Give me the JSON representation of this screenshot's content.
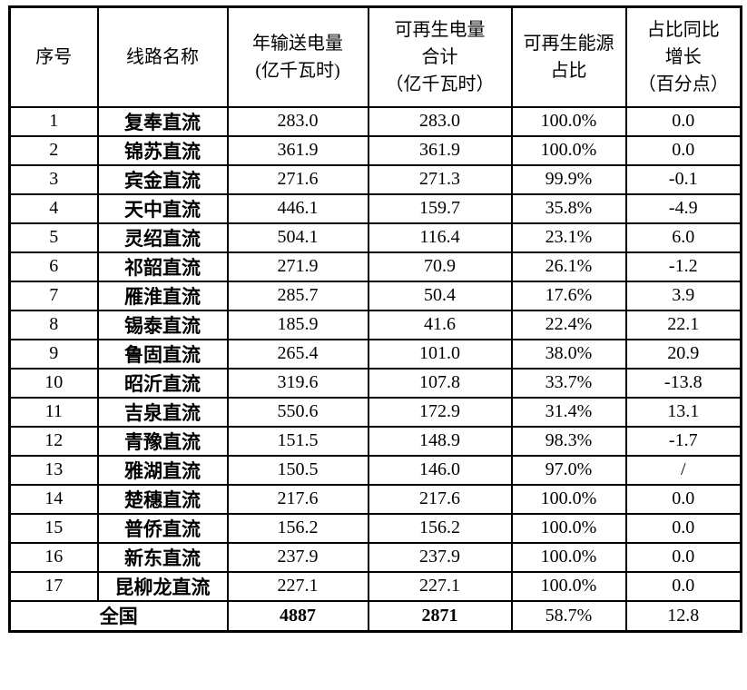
{
  "colors": {
    "border": "#000000",
    "background": "#ffffff",
    "text": "#000000"
  },
  "table": {
    "columns": [
      "序号",
      "线路名称",
      "年输送电量\n(亿千瓦时)",
      "可再生电量\n合计\n（亿千瓦时）",
      "可再生能源\n占比",
      "占比同比\n增长\n（百分点）"
    ],
    "rows": [
      {
        "seq": "1",
        "name": "复奉直流",
        "annual": "283.0",
        "renewable": "283.0",
        "share": "100.0%",
        "yoy": "0.0"
      },
      {
        "seq": "2",
        "name": "锦苏直流",
        "annual": "361.9",
        "renewable": "361.9",
        "share": "100.0%",
        "yoy": "0.0"
      },
      {
        "seq": "3",
        "name": "宾金直流",
        "annual": "271.6",
        "renewable": "271.3",
        "share": "99.9%",
        "yoy": "-0.1"
      },
      {
        "seq": "4",
        "name": "天中直流",
        "annual": "446.1",
        "renewable": "159.7",
        "share": "35.8%",
        "yoy": "-4.9"
      },
      {
        "seq": "5",
        "name": "灵绍直流",
        "annual": "504.1",
        "renewable": "116.4",
        "share": "23.1%",
        "yoy": "6.0"
      },
      {
        "seq": "6",
        "name": "祁韶直流",
        "annual": "271.9",
        "renewable": "70.9",
        "share": "26.1%",
        "yoy": "-1.2"
      },
      {
        "seq": "7",
        "name": "雁淮直流",
        "annual": "285.7",
        "renewable": "50.4",
        "share": "17.6%",
        "yoy": "3.9"
      },
      {
        "seq": "8",
        "name": "锡泰直流",
        "annual": "185.9",
        "renewable": "41.6",
        "share": "22.4%",
        "yoy": "22.1"
      },
      {
        "seq": "9",
        "name": "鲁固直流",
        "annual": "265.4",
        "renewable": "101.0",
        "share": "38.0%",
        "yoy": "20.9"
      },
      {
        "seq": "10",
        "name": "昭沂直流",
        "annual": "319.6",
        "renewable": "107.8",
        "share": "33.7%",
        "yoy": "-13.8"
      },
      {
        "seq": "11",
        "name": "吉泉直流",
        "annual": "550.6",
        "renewable": "172.9",
        "share": "31.4%",
        "yoy": "13.1"
      },
      {
        "seq": "12",
        "name": "青豫直流",
        "annual": "151.5",
        "renewable": "148.9",
        "share": "98.3%",
        "yoy": "-1.7"
      },
      {
        "seq": "13",
        "name": "雅湖直流",
        "annual": "150.5",
        "renewable": "146.0",
        "share": "97.0%",
        "yoy": "/"
      },
      {
        "seq": "14",
        "name": "楚穗直流",
        "annual": "217.6",
        "renewable": "217.6",
        "share": "100.0%",
        "yoy": "0.0"
      },
      {
        "seq": "15",
        "name": "普侨直流",
        "annual": "156.2",
        "renewable": "156.2",
        "share": "100.0%",
        "yoy": "0.0"
      },
      {
        "seq": "16",
        "name": "新东直流",
        "annual": "237.9",
        "renewable": "237.9",
        "share": "100.0%",
        "yoy": "0.0"
      },
      {
        "seq": "17",
        "name": "昆柳龙直流",
        "annual": "227.1",
        "renewable": "227.1",
        "share": "100.0%",
        "yoy": "0.0"
      }
    ],
    "total": {
      "label": "全国",
      "annual": "4887",
      "renewable": "2871",
      "share": "58.7%",
      "yoy": "12.8"
    }
  }
}
